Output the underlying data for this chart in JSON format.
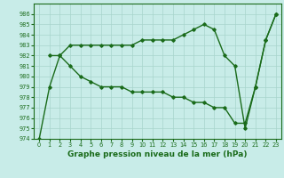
{
  "line1_x": [
    0,
    1,
    2,
    3,
    4,
    5,
    6,
    7,
    8,
    9,
    10,
    11,
    12,
    13,
    14,
    15,
    16,
    17,
    18,
    19,
    20,
    21,
    22,
    23
  ],
  "line1_y": [
    974,
    979,
    982,
    983,
    983,
    983,
    983,
    983,
    983,
    983,
    983.5,
    983.5,
    983.5,
    983.5,
    984,
    984.5,
    985,
    984.5,
    982,
    981,
    975,
    979,
    983.5,
    986
  ],
  "line2_x": [
    1,
    2,
    3,
    4,
    5,
    6,
    7,
    8,
    9,
    10,
    11,
    12,
    13,
    14,
    15,
    16,
    17,
    18,
    19,
    20,
    21,
    22,
    23
  ],
  "line2_y": [
    982,
    982,
    981,
    980,
    979.5,
    979,
    979,
    979,
    978.5,
    978.5,
    978.5,
    978.5,
    978,
    978,
    977.5,
    977.5,
    977,
    977,
    975.5,
    975.5,
    979,
    983.5,
    986
  ],
  "line_color": "#1a6b1a",
  "bg_color": "#c8ece8",
  "grid_color": "#a8d4cc",
  "xlabel": "Graphe pression niveau de la mer (hPa)",
  "ylim": [
    974,
    987
  ],
  "xlim": [
    -0.5,
    23.5
  ],
  "yticks": [
    974,
    975,
    976,
    977,
    978,
    979,
    980,
    981,
    982,
    983,
    984,
    985,
    986
  ],
  "xticks": [
    0,
    1,
    2,
    3,
    4,
    5,
    6,
    7,
    8,
    9,
    10,
    11,
    12,
    13,
    14,
    15,
    16,
    17,
    18,
    19,
    20,
    21,
    22,
    23
  ],
  "marker": "D",
  "marker_size": 1.8,
  "linewidth": 1.0,
  "xlabel_fontsize": 6.5,
  "tick_fontsize": 4.8
}
